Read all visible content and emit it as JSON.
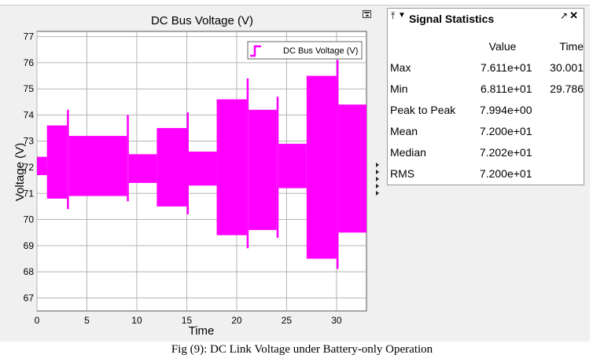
{
  "scope": {
    "title": "DC Bus Voltage (V)",
    "xlabel": "Time",
    "ylabel": "Voltage (V)",
    "legend": "DC Bus Voltage (V)"
  },
  "chart_data": {
    "type": "line",
    "title": "DC Bus Voltage (V)",
    "xlabel": "Time",
    "ylabel": "Voltage (V)",
    "xlim": [
      0,
      33
    ],
    "ylim": [
      66.5,
      77.2
    ],
    "xticks": [
      "0",
      "5",
      "10",
      "15",
      "20",
      "25",
      "30"
    ],
    "yticks": [
      "67",
      "68",
      "69",
      "70",
      "71",
      "72",
      "73",
      "74",
      "75",
      "76",
      "77"
    ],
    "grid": true,
    "legend_position": "top-right",
    "series": [
      {
        "name": "DC Bus Voltage (V)",
        "color": "#ff00ff",
        "envelope": [
          {
            "x": [
              0.0,
              1.0
            ],
            "max": 72.4,
            "min": 71.7
          },
          {
            "x": [
              1.0,
              3.0
            ],
            "max": 73.6,
            "min": 70.8
          },
          {
            "x": [
              3.0,
              3.2
            ],
            "max": 74.2,
            "min": 70.4
          },
          {
            "x": [
              3.2,
              9.0
            ],
            "max": 73.2,
            "min": 70.9
          },
          {
            "x": [
              9.0,
              9.2
            ],
            "max": 74.0,
            "min": 70.7
          },
          {
            "x": [
              9.2,
              12.0
            ],
            "max": 72.5,
            "min": 71.4
          },
          {
            "x": [
              12.0,
              15.0
            ],
            "max": 73.5,
            "min": 70.5
          },
          {
            "x": [
              15.0,
              15.2
            ],
            "max": 74.1,
            "min": 70.2
          },
          {
            "x": [
              15.2,
              18.0
            ],
            "max": 72.6,
            "min": 71.3
          },
          {
            "x": [
              18.0,
              21.0
            ],
            "max": 74.6,
            "min": 69.4
          },
          {
            "x": [
              21.0,
              21.2
            ],
            "max": 75.4,
            "min": 68.9
          },
          {
            "x": [
              21.2,
              24.0
            ],
            "max": 74.2,
            "min": 69.6
          },
          {
            "x": [
              24.0,
              24.2
            ],
            "max": 74.7,
            "min": 69.3
          },
          {
            "x": [
              24.2,
              27.0
            ],
            "max": 72.9,
            "min": 71.2
          },
          {
            "x": [
              27.0,
              30.0
            ],
            "max": 75.5,
            "min": 68.5
          },
          {
            "x": [
              30.0,
              30.2
            ],
            "max": 76.11,
            "min": 68.11
          },
          {
            "x": [
              30.2,
              33.0
            ],
            "max": 74.4,
            "min": 69.5
          }
        ]
      }
    ]
  },
  "stats": {
    "title": "Signal Statistics",
    "headers": {
      "value": "Value",
      "time": "Time"
    },
    "rows": [
      {
        "label": "Max",
        "value": "7.611e+01",
        "time": "30.001"
      },
      {
        "label": "Min",
        "value": "6.811e+01",
        "time": "29.786"
      },
      {
        "label": "Peak to Peak",
        "value": "7.994e+00",
        "time": ""
      },
      {
        "label": "Mean",
        "value": "7.200e+01",
        "time": ""
      },
      {
        "label": "Median",
        "value": "7.202e+01",
        "time": ""
      },
      {
        "label": "RMS",
        "value": "7.200e+01",
        "time": ""
      }
    ]
  },
  "icons": {
    "pin": "pin-icon",
    "menu": "dropdown-menu-icon",
    "undock": "undock-icon",
    "close": "close-icon",
    "pin_glyph": "⤒",
    "menu_glyph": "▼",
    "undock_glyph": "↗",
    "close_glyph": "✕"
  },
  "caption": "Fig (9): DC Link Voltage under Battery-only Operation"
}
